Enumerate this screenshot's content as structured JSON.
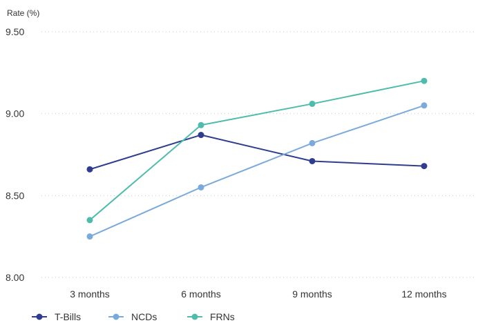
{
  "chart_data": {
    "type": "line",
    "ylabel": "Rate (%)",
    "xlabel": "",
    "categories": [
      "3 months",
      "6 months",
      "9 months",
      "12 months"
    ],
    "yticks": [
      "8.00",
      "8.50",
      "9.00",
      "9.50"
    ],
    "ylim": [
      8.0,
      9.5
    ],
    "grid": "horizontal dotted",
    "legend_position": "bottom-left",
    "series": [
      {
        "name": "T-Bills",
        "color": "#2e3d8f",
        "values": [
          8.66,
          8.87,
          8.71,
          8.68
        ]
      },
      {
        "name": "NCDs",
        "color": "#7aaadb",
        "values": [
          8.25,
          8.55,
          8.82,
          9.05
        ]
      },
      {
        "name": "FRNs",
        "color": "#4dbcaa",
        "values": [
          8.35,
          8.93,
          9.06,
          9.2
        ]
      }
    ]
  }
}
